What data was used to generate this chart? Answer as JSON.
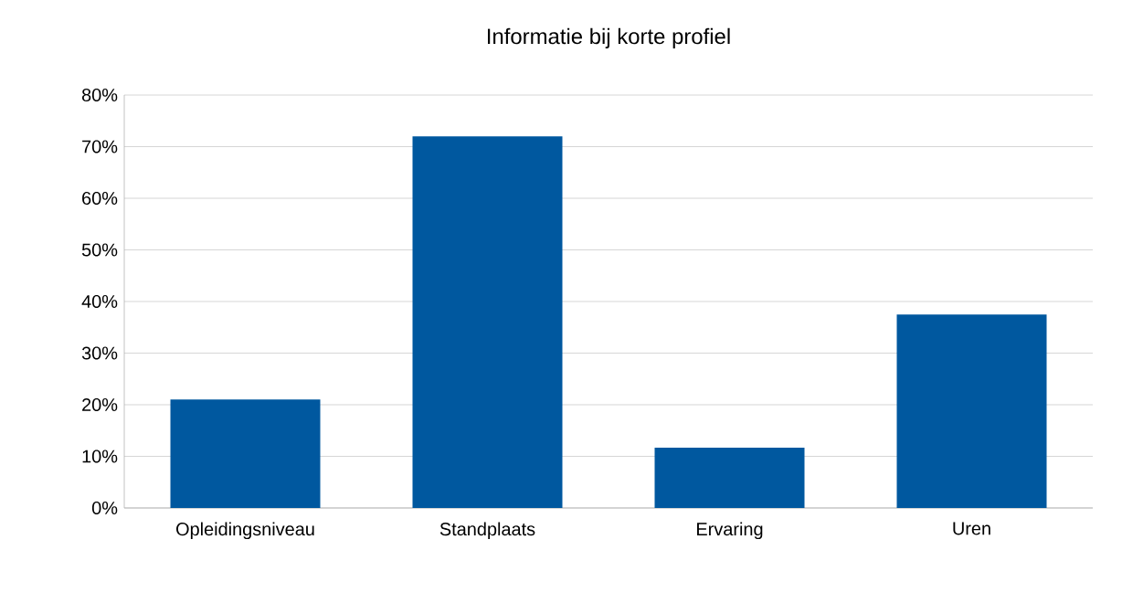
{
  "chart_data": {
    "type": "bar",
    "title": "Informatie bij korte profiel",
    "categories": [
      "Opleidingsniveau",
      "Standplaats",
      "Ervaring",
      "Uren"
    ],
    "values": [
      21,
      72,
      11.7,
      37.5
    ],
    "color": "#00589f",
    "ylim": [
      0,
      80
    ],
    "yticks": [
      {
        "value": 0,
        "label": "0%"
      },
      {
        "value": 10,
        "label": "10%"
      },
      {
        "value": 20,
        "label": "20%"
      },
      {
        "value": 30,
        "label": "30%"
      },
      {
        "value": 40,
        "label": "40%"
      },
      {
        "value": 50,
        "label": "50%"
      },
      {
        "value": 60,
        "label": "60%"
      },
      {
        "value": 70,
        "label": "70%"
      },
      {
        "value": 80,
        "label": "80%"
      }
    ],
    "grid": "y"
  }
}
